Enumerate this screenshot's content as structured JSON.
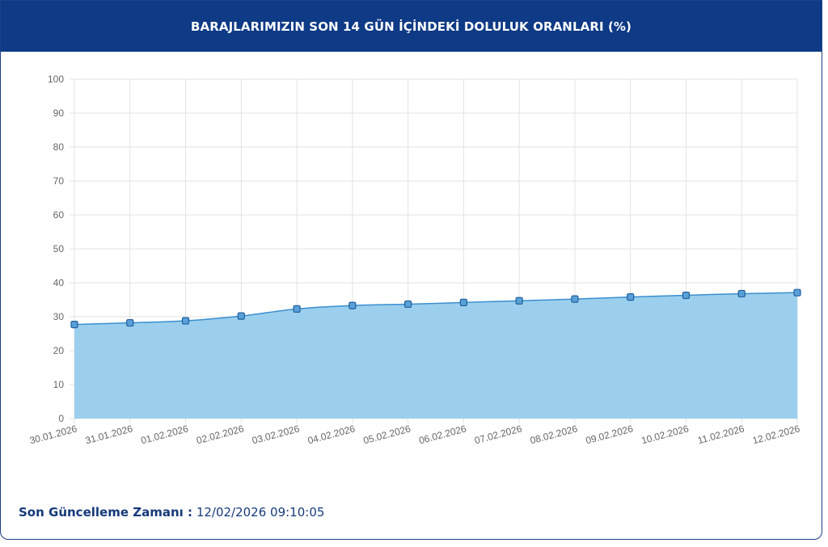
{
  "header": {
    "title": "BARAJLARIMIZIN SON 14 GÜN İÇİNDEKİ DOLULUK ORANLARI (%)"
  },
  "footer": {
    "label": "Son Güncelleme Zamanı :",
    "value": "12/02/2026 09:10:05"
  },
  "colors": {
    "header_bg": "#0e3a86",
    "area_fill": "#9ccfed",
    "line": "#3a8fd0",
    "marker_fill": "#5aa0d8",
    "marker_stroke": "#1f5f9c"
  },
  "chart_data": {
    "type": "area",
    "x": [
      "30.01.2026",
      "31.01.2026",
      "01.02.2026",
      "02.02.2026",
      "03.02.2026",
      "04.02.2026",
      "05.02.2026",
      "06.02.2026",
      "07.02.2026",
      "08.02.2026",
      "09.02.2026",
      "10.02.2026",
      "11.02.2026",
      "12.02.2026"
    ],
    "values": [
      27.7,
      28.2,
      28.8,
      30.2,
      32.3,
      33.3,
      33.7,
      34.2,
      34.7,
      35.2,
      35.8,
      36.3,
      36.8,
      37.1
    ],
    "ylim": [
      0,
      100
    ],
    "yticks": [
      0,
      10,
      20,
      30,
      40,
      50,
      60,
      70,
      80,
      90,
      100
    ],
    "grid": true,
    "legend": "none"
  }
}
